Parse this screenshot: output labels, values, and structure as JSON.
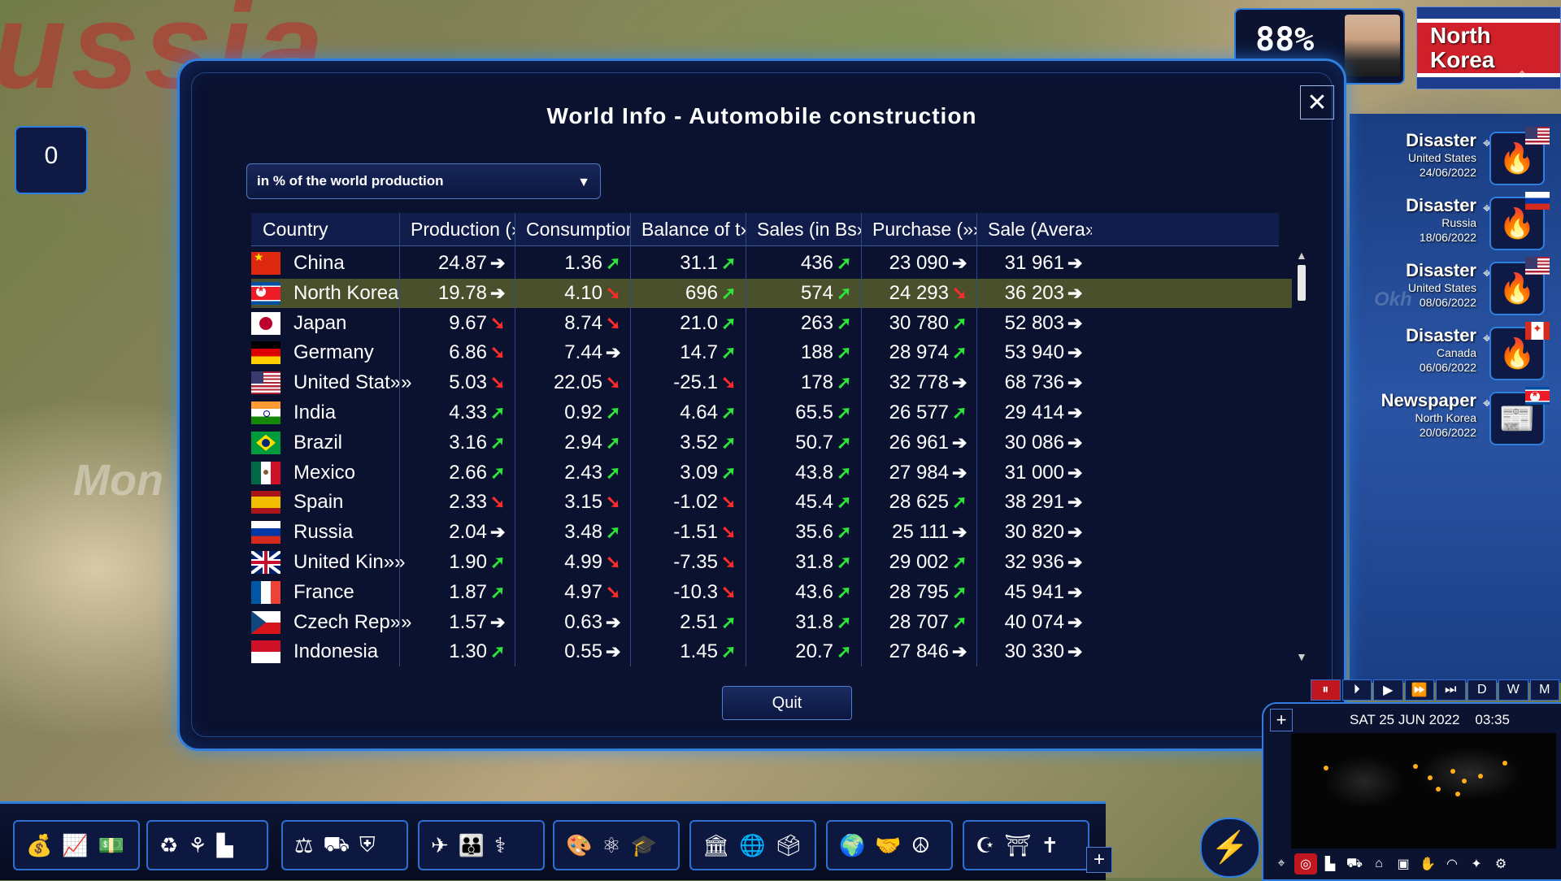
{
  "map": {
    "label_russia": "ussia",
    "label_mongolia": "Mon",
    "label_okhotsk": "Okh"
  },
  "hud": {
    "approval": "88%",
    "country_name": "North\nKorea",
    "counter": "0"
  },
  "dialog": {
    "title": "World Info - Automobile construction",
    "unit_select": {
      "value": "in % of the world production"
    },
    "quit_label": "Quit",
    "columns": [
      "Country",
      "Production (»»",
      "Consumption»»",
      "Balance of t»»",
      "Sales (in Bs»»",
      "Purchase (»»",
      "Sale (Avera»»"
    ],
    "rows": [
      {
        "country": "China",
        "flag": "cn",
        "production": "24.87",
        "production_trend": "flat",
        "consumption": "1.36",
        "consumption_trend": "up",
        "balance": "31.1",
        "balance_trend": "up",
        "sales": "436",
        "sales_trend": "up",
        "purchase": "23 090",
        "purchase_trend": "flat",
        "sale_avg": "31 961",
        "sale_avg_trend": "flat"
      },
      {
        "country": "North Korea",
        "flag": "kp",
        "selected": true,
        "production": "19.78",
        "production_trend": "flat",
        "consumption": "4.10",
        "consumption_trend": "down",
        "balance": "696",
        "balance_trend": "up",
        "sales": "574",
        "sales_trend": "up",
        "purchase": "24 293",
        "purchase_trend": "down",
        "sale_avg": "36 203",
        "sale_avg_trend": "flat"
      },
      {
        "country": "Japan",
        "flag": "jp",
        "production": "9.67",
        "production_trend": "down",
        "consumption": "8.74",
        "consumption_trend": "down",
        "balance": "21.0",
        "balance_trend": "up",
        "sales": "263",
        "sales_trend": "up",
        "purchase": "30 780",
        "purchase_trend": "up",
        "sale_avg": "52 803",
        "sale_avg_trend": "flat"
      },
      {
        "country": "Germany",
        "flag": "de",
        "production": "6.86",
        "production_trend": "down",
        "consumption": "7.44",
        "consumption_trend": "flat",
        "balance": "14.7",
        "balance_trend": "up",
        "sales": "188",
        "sales_trend": "up",
        "purchase": "28 974",
        "purchase_trend": "up",
        "sale_avg": "53 940",
        "sale_avg_trend": "flat"
      },
      {
        "country": "United Stat»»",
        "flag": "us",
        "production": "5.03",
        "production_trend": "down",
        "consumption": "22.05",
        "consumption_trend": "down",
        "balance": "-25.1",
        "balance_trend": "down",
        "sales": "178",
        "sales_trend": "up",
        "purchase": "32 778",
        "purchase_trend": "flat",
        "sale_avg": "68 736",
        "sale_avg_trend": "flat"
      },
      {
        "country": "India",
        "flag": "in",
        "production": "4.33",
        "production_trend": "up",
        "consumption": "0.92",
        "consumption_trend": "up",
        "balance": "4.64",
        "balance_trend": "up",
        "sales": "65.5",
        "sales_trend": "up",
        "purchase": "26 577",
        "purchase_trend": "up",
        "sale_avg": "29 414",
        "sale_avg_trend": "flat"
      },
      {
        "country": "Brazil",
        "flag": "br",
        "production": "3.16",
        "production_trend": "up",
        "consumption": "2.94",
        "consumption_trend": "up",
        "balance": "3.52",
        "balance_trend": "up",
        "sales": "50.7",
        "sales_trend": "up",
        "purchase": "26 961",
        "purchase_trend": "flat",
        "sale_avg": "30 086",
        "sale_avg_trend": "flat"
      },
      {
        "country": "Mexico",
        "flag": "mx",
        "production": "2.66",
        "production_trend": "up",
        "consumption": "2.43",
        "consumption_trend": "up",
        "balance": "3.09",
        "balance_trend": "up",
        "sales": "43.8",
        "sales_trend": "up",
        "purchase": "27 984",
        "purchase_trend": "flat",
        "sale_avg": "31 000",
        "sale_avg_trend": "flat"
      },
      {
        "country": "Spain",
        "flag": "es",
        "production": "2.33",
        "production_trend": "down",
        "consumption": "3.15",
        "consumption_trend": "down",
        "balance": "-1.02",
        "balance_trend": "down",
        "sales": "45.4",
        "sales_trend": "up",
        "purchase": "28 625",
        "purchase_trend": "up",
        "sale_avg": "38 291",
        "sale_avg_trend": "flat"
      },
      {
        "country": "Russia",
        "flag": "ru",
        "production": "2.04",
        "production_trend": "flat",
        "consumption": "3.48",
        "consumption_trend": "up",
        "balance": "-1.51",
        "balance_trend": "down",
        "sales": "35.6",
        "sales_trend": "up",
        "purchase": "25 111",
        "purchase_trend": "flat",
        "sale_avg": "30 820",
        "sale_avg_trend": "flat"
      },
      {
        "country": "United Kin»»",
        "flag": "gb",
        "production": "1.90",
        "production_trend": "up",
        "consumption": "4.99",
        "consumption_trend": "down",
        "balance": "-7.35",
        "balance_trend": "down",
        "sales": "31.8",
        "sales_trend": "up",
        "purchase": "29 002",
        "purchase_trend": "up",
        "sale_avg": "32 936",
        "sale_avg_trend": "flat"
      },
      {
        "country": "France",
        "flag": "fr",
        "production": "1.87",
        "production_trend": "up",
        "consumption": "4.97",
        "consumption_trend": "down",
        "balance": "-10.3",
        "balance_trend": "down",
        "sales": "43.6",
        "sales_trend": "up",
        "purchase": "28 795",
        "purchase_trend": "up",
        "sale_avg": "45 941",
        "sale_avg_trend": "flat"
      },
      {
        "country": "Czech Rep»»",
        "flag": "cz",
        "production": "1.57",
        "production_trend": "flat",
        "consumption": "0.63",
        "consumption_trend": "flat",
        "balance": "2.51",
        "balance_trend": "up",
        "sales": "31.8",
        "sales_trend": "up",
        "purchase": "28 707",
        "purchase_trend": "up",
        "sale_avg": "40 074",
        "sale_avg_trend": "flat"
      },
      {
        "country": "Indonesia",
        "flag": "id",
        "production": "1.30",
        "production_trend": "up",
        "consumption": "0.55",
        "consumption_trend": "flat",
        "balance": "1.45",
        "balance_trend": "up",
        "sales": "20.7",
        "sales_trend": "up",
        "purchase": "27 846",
        "purchase_trend": "flat",
        "sale_avg": "30 330",
        "sale_avg_trend": "flat"
      }
    ]
  },
  "news": [
    {
      "type": "Disaster",
      "country": "United States",
      "date": "24/06/2022",
      "flag": "us",
      "icon": "fire-hand-icon"
    },
    {
      "type": "Disaster",
      "country": "Russia",
      "date": "18/06/2022",
      "flag": "ru",
      "icon": "fire-icon"
    },
    {
      "type": "Disaster",
      "country": "United States",
      "date": "08/06/2022",
      "flag": "us",
      "icon": "fire-icon"
    },
    {
      "type": "Disaster",
      "country": "Canada",
      "date": "06/06/2022",
      "flag": "ca",
      "icon": "fire-icon"
    },
    {
      "type": "Newspaper",
      "country": "North Korea",
      "date": "20/06/2022",
      "flag": "kp",
      "icon": "newspaper-icon"
    }
  ],
  "time": {
    "date": "SAT 25 JUN 2022",
    "clock": "03:35",
    "speed_buttons": [
      "⏸",
      "⏵",
      "▶",
      "⏩",
      "⏭",
      "D",
      "W",
      "M"
    ]
  },
  "colors": {
    "accent": "#2e7fe0",
    "trend_up": "#2ee43a",
    "trend_down": "#ff2a2a",
    "selected_row": "#4a4f2c"
  }
}
